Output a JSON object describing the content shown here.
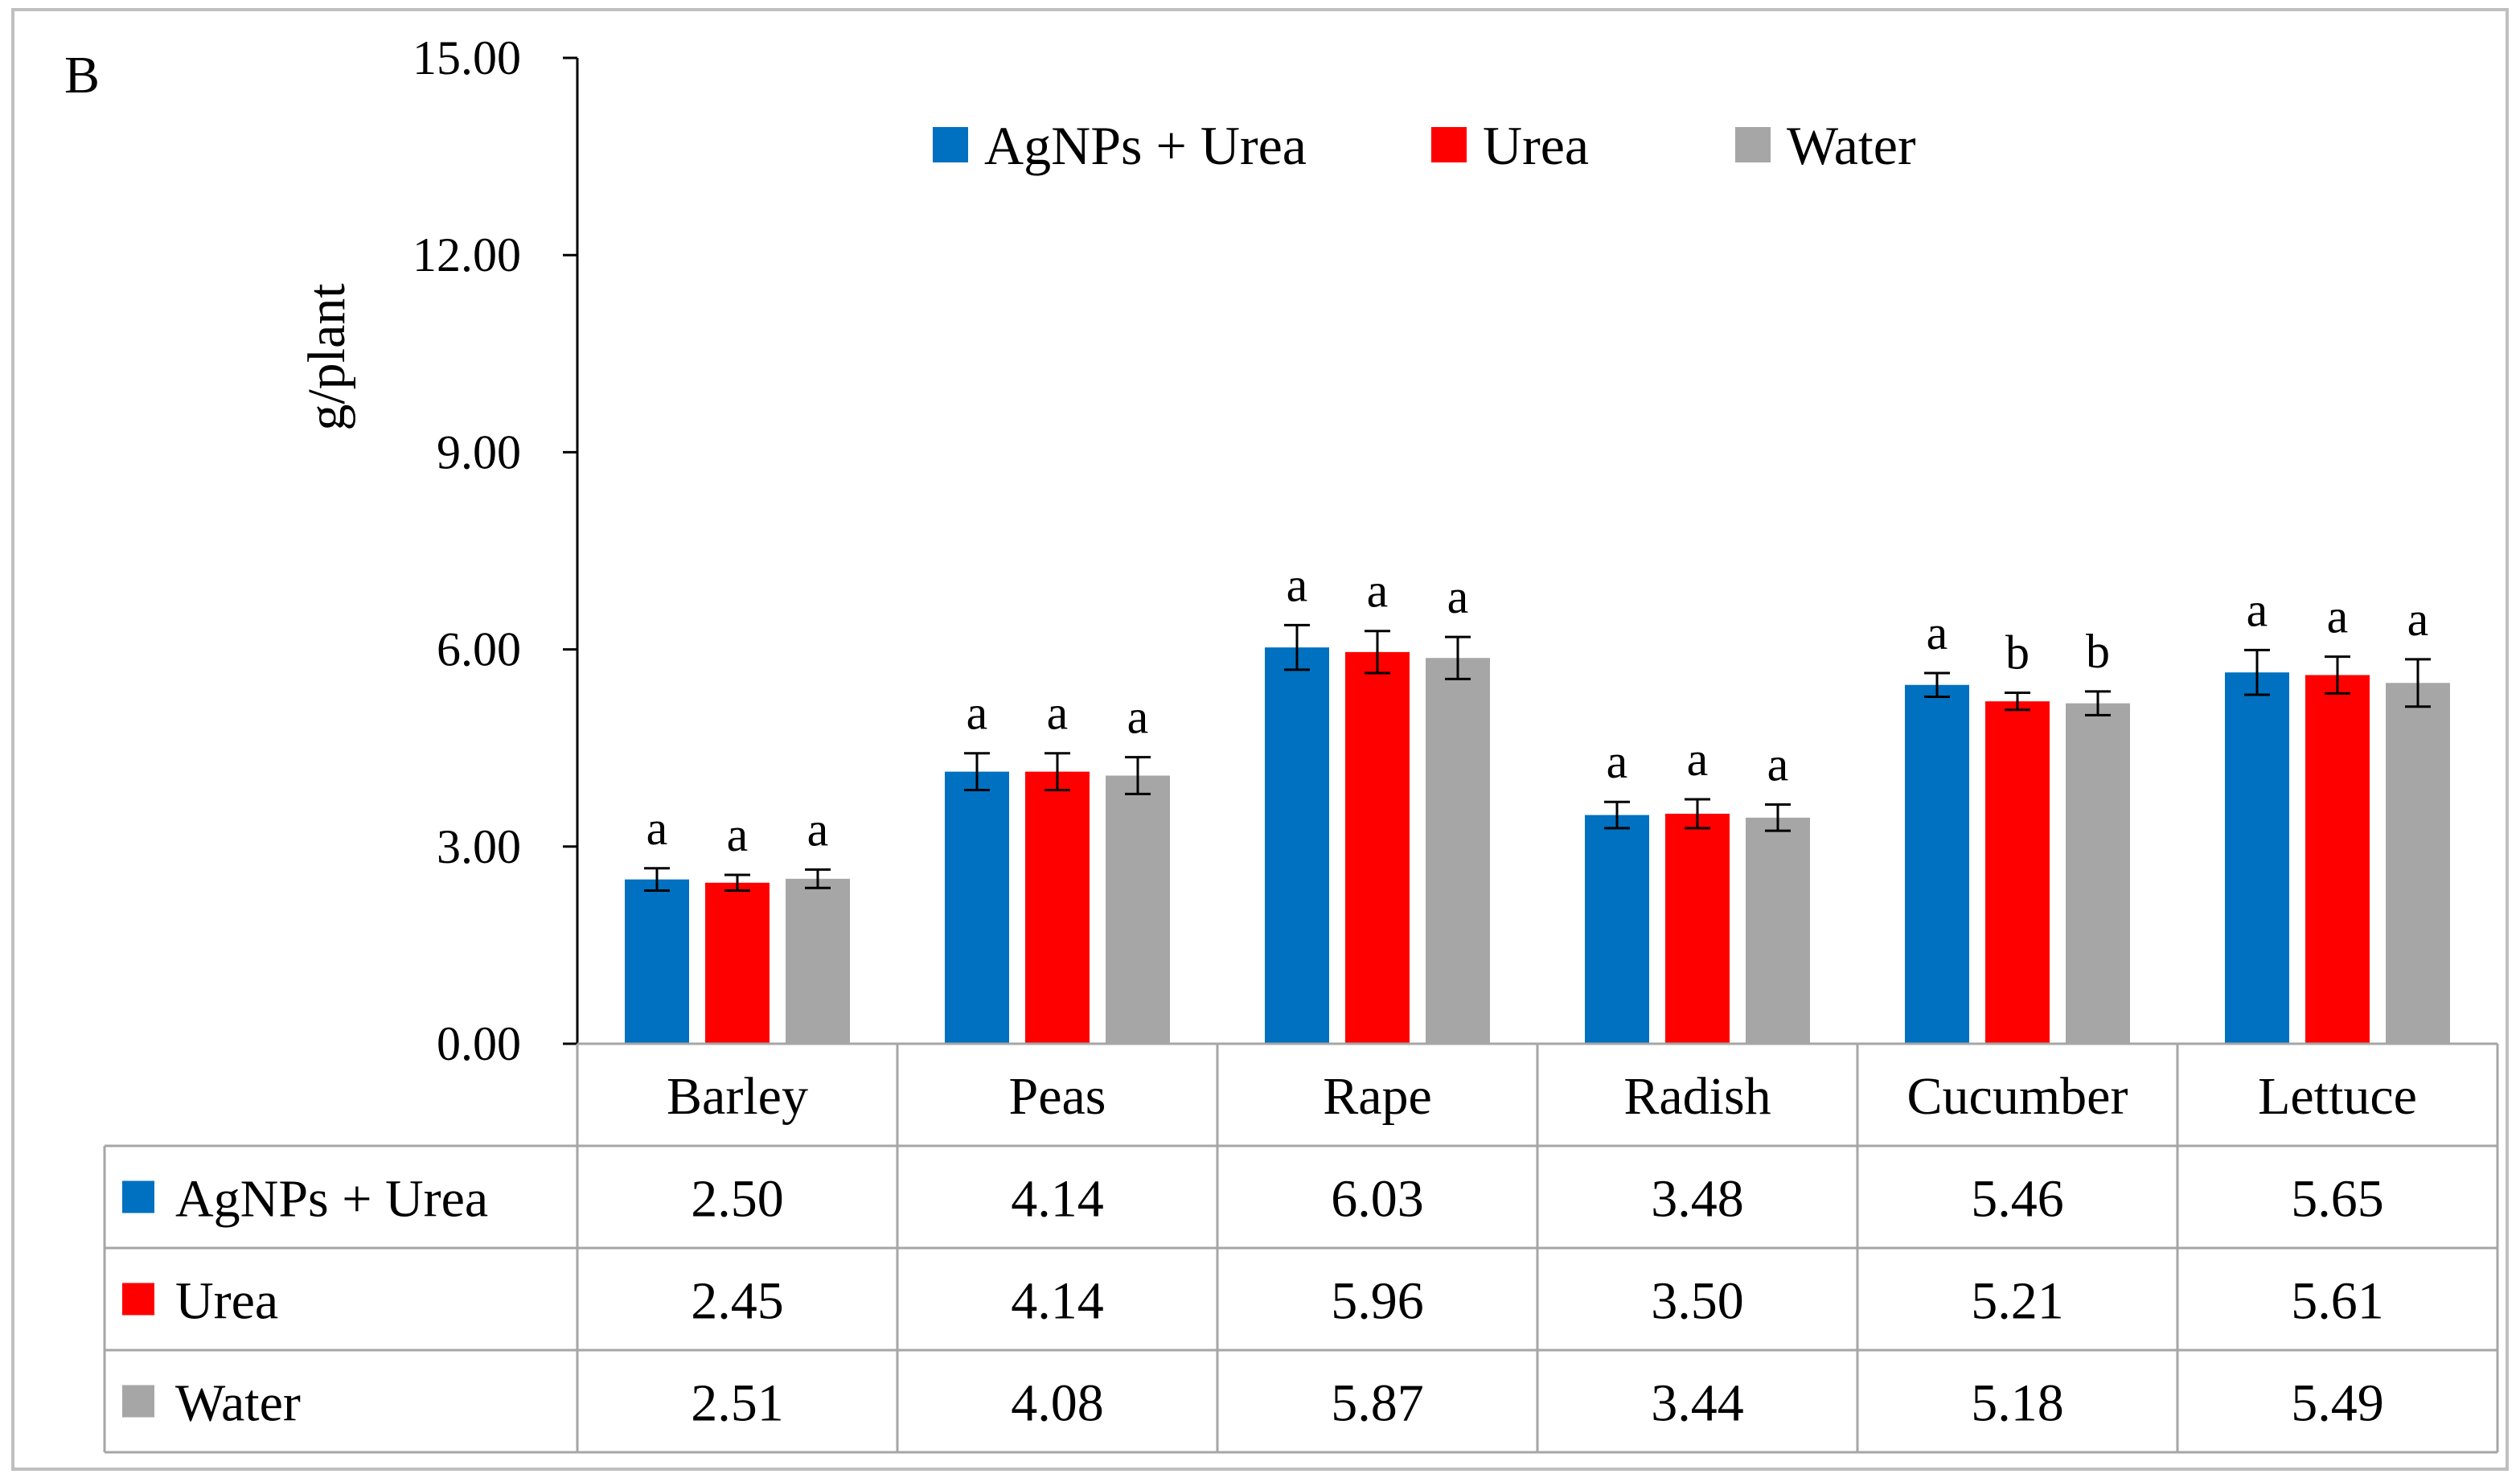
{
  "panel_label": "B",
  "chart_data": {
    "type": "bar",
    "title": "",
    "xlabel": "",
    "ylabel": "g/plant",
    "ylim": [
      0,
      15
    ],
    "yticks": [
      "0.00",
      "3.00",
      "6.00",
      "9.00",
      "12.00",
      "15.00"
    ],
    "categories": [
      "Barley",
      "Peas",
      "Rape",
      "Radish",
      "Cucumber",
      "Lettuce"
    ],
    "legend_position": "top-center",
    "series": [
      {
        "name": "AgNPs + Urea",
        "color": "#0070C0",
        "values": [
          2.5,
          4.14,
          6.03,
          3.48,
          5.46,
          5.65
        ],
        "labels": [
          "2.50",
          "4.14",
          "6.03",
          "3.48",
          "5.46",
          "5.65"
        ],
        "errors": [
          0.17,
          0.28,
          0.34,
          0.2,
          0.18,
          0.34
        ],
        "significance": [
          "a",
          "a",
          "a",
          "a",
          "a",
          "a"
        ]
      },
      {
        "name": "Urea",
        "color": "#FF0000",
        "values": [
          2.45,
          4.14,
          5.96,
          3.5,
          5.21,
          5.61
        ],
        "labels": [
          "2.45",
          "4.14",
          "5.96",
          "3.50",
          "5.21",
          "5.61"
        ],
        "errors": [
          0.12,
          0.28,
          0.32,
          0.22,
          0.13,
          0.28
        ],
        "significance": [
          "a",
          "a",
          "a",
          "a",
          "b",
          "a"
        ]
      },
      {
        "name": "Water",
        "color": "#A6A6A6",
        "values": [
          2.51,
          4.08,
          5.87,
          3.44,
          5.18,
          5.49
        ],
        "labels": [
          "2.51",
          "4.08",
          "5.87",
          "3.44",
          "5.18",
          "5.49"
        ],
        "errors": [
          0.14,
          0.28,
          0.32,
          0.2,
          0.18,
          0.36
        ],
        "significance": [
          "a",
          "a",
          "a",
          "a",
          "b",
          "a"
        ]
      }
    ]
  }
}
